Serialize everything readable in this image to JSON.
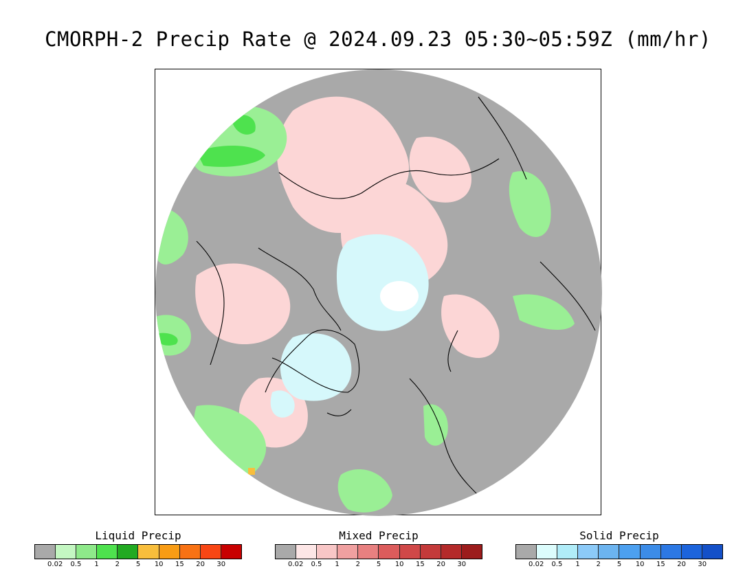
{
  "title": "CMORPH-2 Precip Rate @ 2024.09.23 05:30~05:59Z (mm/hr)",
  "map": {
    "colors": {
      "no_precip": "#a9a9a9",
      "ocean_edge": "#ffffff",
      "coastline": "#000000",
      "liquid_light": "#9aef95",
      "liquid_mid": "#4ee24e",
      "mixed_light": "#fcd6d6",
      "solid_light": "#d6f8fb",
      "solid_white": "#ffffff"
    }
  },
  "legends": [
    {
      "title": "Liquid Precip",
      "colors": [
        "#a9a9a9",
        "#c4f7c2",
        "#8ee98a",
        "#4ee24e",
        "#22aa22",
        "#f8be3c",
        "#f89c14",
        "#f87214",
        "#f84614",
        "#c80000"
      ],
      "ticks": [
        "0.02",
        "0.5",
        "1",
        "2",
        "5",
        "10",
        "15",
        "20",
        "30"
      ]
    },
    {
      "title": "Mixed Precip",
      "colors": [
        "#a9a9a9",
        "#fde6e6",
        "#f8c6c6",
        "#f0a0a0",
        "#e88080",
        "#dc5c5c",
        "#d04848",
        "#c43a3a",
        "#b42a2a",
        "#9c1c1c"
      ],
      "ticks": [
        "0.02",
        "0.5",
        "1",
        "2",
        "5",
        "10",
        "15",
        "20",
        "30"
      ]
    },
    {
      "title": "Solid Precip",
      "colors": [
        "#a9a9a9",
        "#dcfcfc",
        "#b0ecf8",
        "#8ccaf8",
        "#6cb4f0",
        "#4ca0f0",
        "#3c8ce8",
        "#2c78e4",
        "#1c64dc",
        "#1450c8"
      ],
      "ticks": [
        "0.02",
        "0.5",
        "1",
        "2",
        "5",
        "10",
        "15",
        "20",
        "30"
      ]
    }
  ]
}
